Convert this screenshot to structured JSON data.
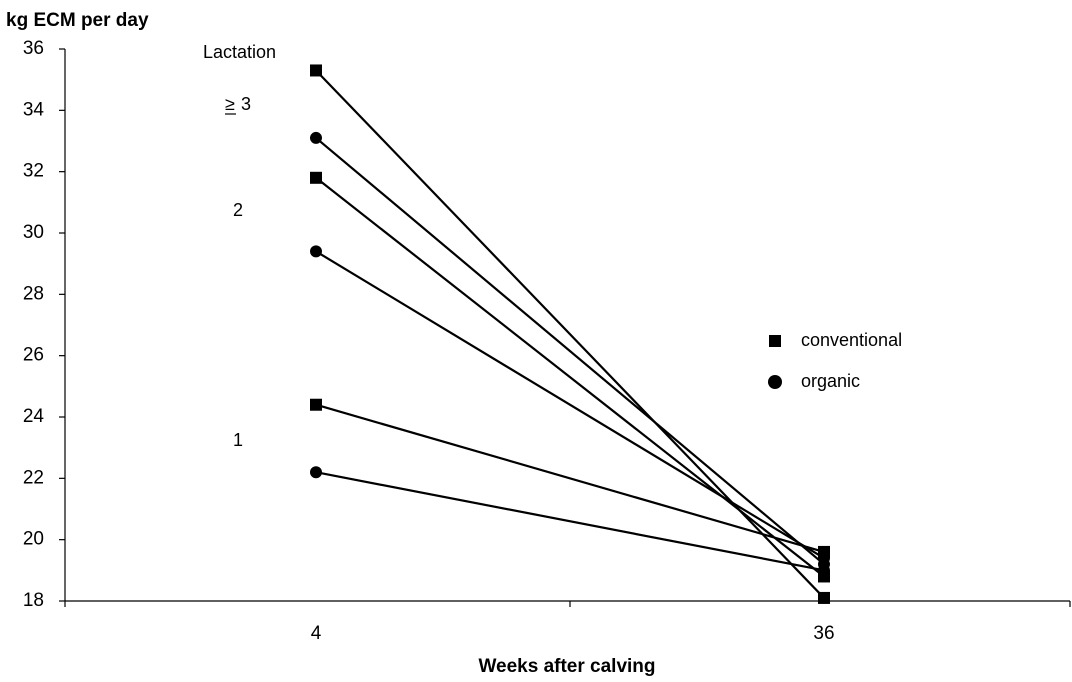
{
  "chart_data": {
    "type": "line",
    "ylabel": "kg ECM per day",
    "xlabel": "Weeks after calving",
    "categories": [
      "4",
      "36"
    ],
    "ylim": [
      18,
      36
    ],
    "yticks": [
      18,
      20,
      22,
      24,
      26,
      28,
      30,
      32,
      34,
      36
    ],
    "grid": false,
    "legend_position": "right",
    "legend": [
      {
        "label": "conventional",
        "marker": "square"
      },
      {
        "label": "organic",
        "marker": "circle"
      }
    ],
    "annotations": {
      "title": "Lactation",
      "groups": [
        {
          "prefix": "≥",
          "label": "3"
        },
        {
          "prefix": "",
          "label": "2"
        },
        {
          "prefix": "",
          "label": "1"
        }
      ]
    },
    "series": [
      {
        "group": "≥3",
        "system": "conventional",
        "marker": "square",
        "values": [
          35.3,
          18.1
        ]
      },
      {
        "group": "≥3",
        "system": "organic",
        "marker": "circle",
        "values": [
          33.1,
          19.2
        ]
      },
      {
        "group": "2",
        "system": "conventional",
        "marker": "square",
        "values": [
          31.8,
          18.8
        ]
      },
      {
        "group": "2",
        "system": "organic",
        "marker": "circle",
        "values": [
          29.4,
          19.4
        ]
      },
      {
        "group": "1",
        "system": "conventional",
        "marker": "square",
        "values": [
          24.4,
          19.6
        ]
      },
      {
        "group": "1",
        "system": "organic",
        "marker": "circle",
        "values": [
          22.2,
          19.0
        ]
      }
    ],
    "colors": {
      "line": "#000000",
      "marker": "#000000",
      "axis": "#000000"
    }
  }
}
